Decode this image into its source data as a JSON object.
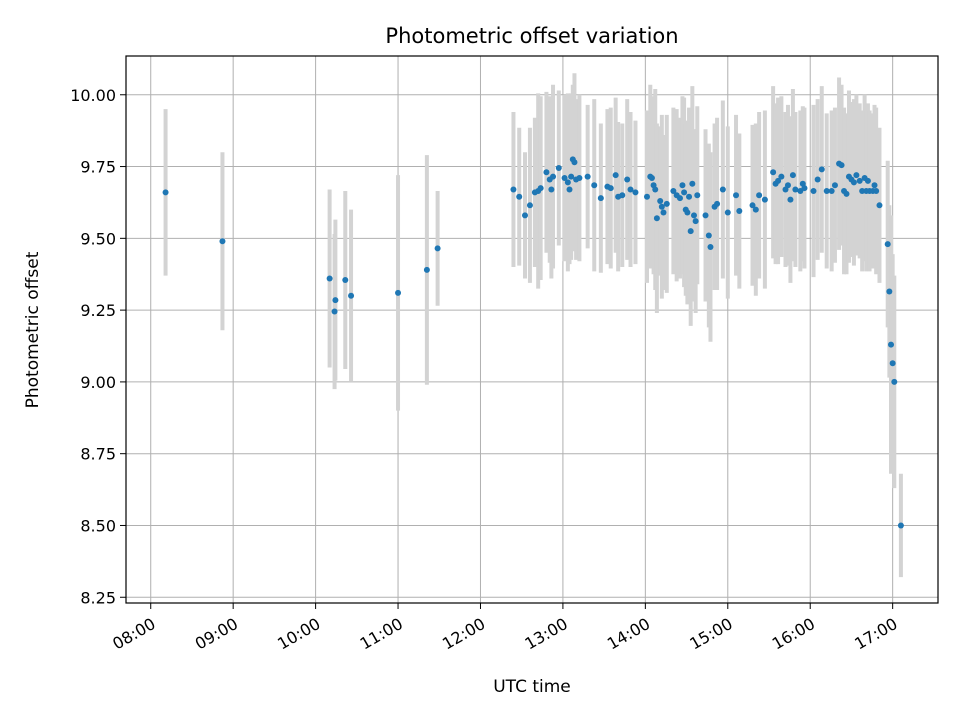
{
  "chart_data": {
    "type": "scatter",
    "title": "Photometric offset variation",
    "xlabel": "UTC time",
    "ylabel": "Photometric offset",
    "grid": true,
    "x_unit": "hours (UTC)",
    "xlim": [
      7.7,
      17.55
    ],
    "ylim": [
      8.23,
      10.135
    ],
    "x_ticks": [
      {
        "value": 8,
        "label": "08:00"
      },
      {
        "value": 9,
        "label": "09:00"
      },
      {
        "value": 10,
        "label": "10:00"
      },
      {
        "value": 11,
        "label": "11:00"
      },
      {
        "value": 12,
        "label": "12:00"
      },
      {
        "value": 13,
        "label": "13:00"
      },
      {
        "value": 14,
        "label": "14:00"
      },
      {
        "value": 15,
        "label": "15:00"
      },
      {
        "value": 16,
        "label": "16:00"
      },
      {
        "value": 17,
        "label": "17:00"
      }
    ],
    "y_ticks": [
      {
        "value": 8.25,
        "label": "8.25"
      },
      {
        "value": 8.5,
        "label": "8.50"
      },
      {
        "value": 8.75,
        "label": "8.75"
      },
      {
        "value": 9.0,
        "label": "9.00"
      },
      {
        "value": 9.25,
        "label": "9.25"
      },
      {
        "value": 9.5,
        "label": "9.50"
      },
      {
        "value": 9.75,
        "label": "9.75"
      },
      {
        "value": 10.0,
        "label": "10.00"
      }
    ],
    "colors": {
      "point": "#1f77b4",
      "errorbar": "#d3d3d3",
      "grid": "#b0b0b0",
      "axis": "#000000"
    },
    "series": [
      {
        "name": "offset",
        "points": [
          [
            8.18,
            9.66,
            0.29
          ],
          [
            8.87,
            9.49,
            0.31
          ],
          [
            10.17,
            9.36,
            0.31
          ],
          [
            10.23,
            9.245,
            0.27
          ],
          [
            10.24,
            9.285,
            0.28
          ],
          [
            10.36,
            9.355,
            0.31
          ],
          [
            10.43,
            9.3,
            0.3
          ],
          [
            11.0,
            9.31,
            0.41
          ],
          [
            11.35,
            9.39,
            0.4
          ],
          [
            11.48,
            9.465,
            0.2
          ],
          [
            12.4,
            9.67,
            0.27
          ],
          [
            12.47,
            9.645,
            0.24
          ],
          [
            12.54,
            9.58,
            0.22
          ],
          [
            12.6,
            9.615,
            0.27
          ],
          [
            12.66,
            9.66,
            0.26
          ],
          [
            12.7,
            9.665,
            0.34
          ],
          [
            12.73,
            9.675,
            0.32
          ],
          [
            12.8,
            9.73,
            0.28
          ],
          [
            12.84,
            9.705,
            0.29
          ],
          [
            12.86,
            9.67,
            0.31
          ],
          [
            12.88,
            9.715,
            0.32
          ],
          [
            12.95,
            9.745,
            0.27
          ],
          [
            13.02,
            9.71,
            0.29
          ],
          [
            13.06,
            9.695,
            0.31
          ],
          [
            13.08,
            9.67,
            0.26
          ],
          [
            13.1,
            9.715,
            0.29
          ],
          [
            13.12,
            9.775,
            0.26
          ],
          [
            13.14,
            9.765,
            0.31
          ],
          [
            13.16,
            9.705,
            0.28
          ],
          [
            13.2,
            9.71,
            0.29
          ],
          [
            13.3,
            9.715,
            0.25
          ],
          [
            13.38,
            9.685,
            0.3
          ],
          [
            13.46,
            9.64,
            0.26
          ],
          [
            13.54,
            9.68,
            0.27
          ],
          [
            13.58,
            9.675,
            0.28
          ],
          [
            13.64,
            9.72,
            0.27
          ],
          [
            13.67,
            9.645,
            0.26
          ],
          [
            13.72,
            9.65,
            0.25
          ],
          [
            13.78,
            9.705,
            0.28
          ],
          [
            13.82,
            9.67,
            0.27
          ],
          [
            13.88,
            9.66,
            0.25
          ],
          [
            14.02,
            9.645,
            0.3
          ],
          [
            14.06,
            9.715,
            0.32
          ],
          [
            14.08,
            9.71,
            0.28
          ],
          [
            14.1,
            9.685,
            0.31
          ],
          [
            14.12,
            9.67,
            0.35
          ],
          [
            14.14,
            9.57,
            0.33
          ],
          [
            14.18,
            9.63,
            0.26
          ],
          [
            14.2,
            9.61,
            0.32
          ],
          [
            14.22,
            9.59,
            0.27
          ],
          [
            14.26,
            9.62,
            0.31
          ],
          [
            14.34,
            9.665,
            0.29
          ],
          [
            14.38,
            9.65,
            0.3
          ],
          [
            14.42,
            9.64,
            0.28
          ],
          [
            14.45,
            9.685,
            0.31
          ],
          [
            14.47,
            9.66,
            0.33
          ],
          [
            14.49,
            9.6,
            0.3
          ],
          [
            14.51,
            9.59,
            0.32
          ],
          [
            14.53,
            9.645,
            0.31
          ],
          [
            14.55,
            9.525,
            0.33
          ],
          [
            14.57,
            9.69,
            0.34
          ],
          [
            14.59,
            9.58,
            0.3
          ],
          [
            14.61,
            9.56,
            0.32
          ],
          [
            14.63,
            9.65,
            0.31
          ],
          [
            14.73,
            9.58,
            0.3
          ],
          [
            14.77,
            9.51,
            0.32
          ],
          [
            14.79,
            9.47,
            0.33
          ],
          [
            14.84,
            9.61,
            0.29
          ],
          [
            14.87,
            9.62,
            0.3
          ],
          [
            14.94,
            9.67,
            0.31
          ],
          [
            15.0,
            9.59,
            0.3
          ],
          [
            15.1,
            9.65,
            0.28
          ],
          [
            15.14,
            9.595,
            0.27
          ],
          [
            15.3,
            9.615,
            0.28
          ],
          [
            15.34,
            9.6,
            0.3
          ],
          [
            15.38,
            9.65,
            0.29
          ],
          [
            15.45,
            9.635,
            0.31
          ],
          [
            15.55,
            9.73,
            0.3
          ],
          [
            15.58,
            9.69,
            0.28
          ],
          [
            15.61,
            9.7,
            0.29
          ],
          [
            15.65,
            9.715,
            0.28
          ],
          [
            15.7,
            9.67,
            0.27
          ],
          [
            15.73,
            9.685,
            0.28
          ],
          [
            15.76,
            9.635,
            0.29
          ],
          [
            15.79,
            9.72,
            0.3
          ],
          [
            15.82,
            9.67,
            0.27
          ],
          [
            15.88,
            9.665,
            0.28
          ],
          [
            15.91,
            9.69,
            0.27
          ],
          [
            15.93,
            9.675,
            0.28
          ],
          [
            16.04,
            9.665,
            0.3
          ],
          [
            16.09,
            9.705,
            0.28
          ],
          [
            16.14,
            9.74,
            0.29
          ],
          [
            16.2,
            9.665,
            0.27
          ],
          [
            16.26,
            9.665,
            0.28
          ],
          [
            16.3,
            9.685,
            0.27
          ],
          [
            16.35,
            9.76,
            0.3
          ],
          [
            16.38,
            9.755,
            0.28
          ],
          [
            16.41,
            9.665,
            0.29
          ],
          [
            16.44,
            9.655,
            0.28
          ],
          [
            16.47,
            9.715,
            0.3
          ],
          [
            16.5,
            9.705,
            0.27
          ],
          [
            16.53,
            9.695,
            0.29
          ],
          [
            16.56,
            9.72,
            0.28
          ],
          [
            16.6,
            9.7,
            0.27
          ],
          [
            16.63,
            9.665,
            0.28
          ],
          [
            16.66,
            9.71,
            0.29
          ],
          [
            16.68,
            9.665,
            0.28
          ],
          [
            16.7,
            9.7,
            0.27
          ],
          [
            16.72,
            9.665,
            0.28
          ],
          [
            16.76,
            9.665,
            0.27
          ],
          [
            16.78,
            9.685,
            0.28
          ],
          [
            16.8,
            9.665,
            0.29
          ],
          [
            16.84,
            9.615,
            0.27
          ],
          [
            16.94,
            9.48,
            0.29
          ],
          [
            16.96,
            9.315,
            0.3
          ],
          [
            16.98,
            9.13,
            0.45
          ],
          [
            17.0,
            9.065,
            0.38
          ],
          [
            17.02,
            9.0,
            0.37
          ],
          [
            17.1,
            8.5,
            0.18
          ]
        ]
      }
    ]
  }
}
